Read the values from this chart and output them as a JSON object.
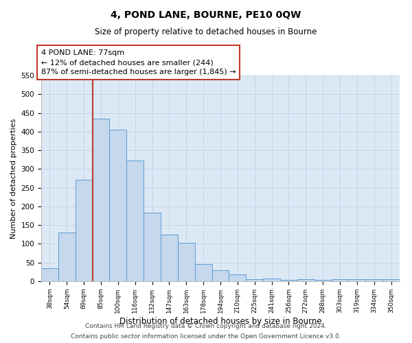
{
  "title": "4, POND LANE, BOURNE, PE10 0QW",
  "subtitle": "Size of property relative to detached houses in Bourne",
  "xlabel": "Distribution of detached houses by size in Bourne",
  "ylabel": "Number of detached properties",
  "categories": [
    "38sqm",
    "54sqm",
    "69sqm",
    "85sqm",
    "100sqm",
    "116sqm",
    "132sqm",
    "147sqm",
    "163sqm",
    "178sqm",
    "194sqm",
    "210sqm",
    "225sqm",
    "241sqm",
    "256sqm",
    "272sqm",
    "288sqm",
    "303sqm",
    "319sqm",
    "334sqm",
    "350sqm"
  ],
  "values": [
    35,
    130,
    272,
    435,
    405,
    322,
    184,
    124,
    103,
    46,
    30,
    18,
    5,
    8,
    4,
    5,
    4,
    5,
    5,
    5,
    5
  ],
  "bar_color": "#c5d8ed",
  "bar_edge_color": "#5b9bd5",
  "vline_x": 2.5,
  "vline_color": "#c0392b",
  "annotation_line1": "4 POND LANE: 77sqm",
  "annotation_line2": "← 12% of detached houses are smaller (244)",
  "annotation_line3": "87% of semi-detached houses are larger (1,845) →",
  "annotation_box_color": "#c0392b",
  "ylim": [
    0,
    550
  ],
  "yticks": [
    0,
    50,
    100,
    150,
    200,
    250,
    300,
    350,
    400,
    450,
    500,
    550
  ],
  "grid_color": "#c5d8ed",
  "background_color": "#dce9f5",
  "footer_line1": "Contains HM Land Registry data © Crown copyright and database right 2024.",
  "footer_line2": "Contains public sector information licensed under the Open Government Licence v3.0."
}
